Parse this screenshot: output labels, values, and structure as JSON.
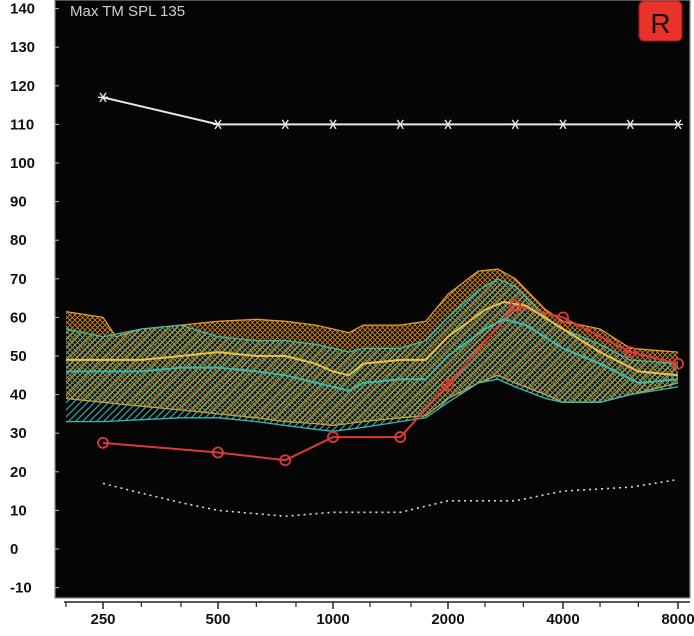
{
  "header": {
    "title": "Max TM SPL 135"
  },
  "ear_badge": {
    "label": "R",
    "color": "#e8322a"
  },
  "colors": {
    "background": "#050505",
    "grid": "#4a4a4a",
    "orange": "#e89a2a",
    "teal": "#38b9b0",
    "red": "#e0383a",
    "white": "#e8e8e8",
    "badge": "#e8322a"
  },
  "chart_data": {
    "type": "line",
    "title": "Max TM SPL 135",
    "xlabel": "",
    "ylabel": "",
    "x_scale": "log",
    "ylim": [
      -12,
      140
    ],
    "y_ticks": [
      -10,
      0,
      10,
      20,
      30,
      40,
      50,
      60,
      70,
      80,
      90,
      100,
      110,
      120,
      130,
      140
    ],
    "y_tick_labels": [
      "-10",
      "0",
      "10",
      "20",
      "30",
      "40",
      "50",
      "60",
      "70",
      "80",
      "90",
      "100",
      "110",
      "120",
      "130",
      "140"
    ],
    "x_tick_values": [
      250,
      500,
      1000,
      2000,
      4000,
      8000
    ],
    "x_tick_labels": [
      "250",
      "500",
      "1000",
      "2000",
      "4000",
      "8000"
    ],
    "x_minor_ticks": [
      200,
      315,
      400,
      630,
      800,
      1250,
      1600,
      2500,
      3150,
      5000,
      6300
    ],
    "grid": false,
    "series": [
      {
        "marker": "star",
        "color": "#e8e8e8",
        "style": "solid",
        "points": [
          [
            250,
            117
          ],
          [
            500,
            110
          ],
          [
            750,
            110
          ],
          [
            1000,
            110
          ],
          [
            1500,
            110
          ],
          [
            2000,
            110
          ],
          [
            3000,
            110
          ],
          [
            4000,
            110
          ],
          [
            6000,
            110
          ],
          [
            8000,
            110
          ]
        ]
      },
      {
        "marker": "circle",
        "color": "#e0383a",
        "style": "solid",
        "points": [
          [
            250,
            27.5
          ],
          [
            500,
            25
          ],
          [
            750,
            23
          ],
          [
            1000,
            29
          ],
          [
            1500,
            29
          ],
          [
            2000,
            42.5
          ],
          [
            3000,
            63
          ],
          [
            4000,
            60
          ],
          [
            6000,
            51
          ],
          [
            8000,
            48
          ]
        ]
      },
      {
        "marker": "none",
        "color": "#dddddd",
        "style": "dotted",
        "points": [
          [
            250,
            17
          ],
          [
            300,
            15
          ],
          [
            400,
            12
          ],
          [
            500,
            10
          ],
          [
            750,
            8.5
          ],
          [
            1000,
            9.5
          ],
          [
            1500,
            9.5
          ],
          [
            2000,
            12.5
          ],
          [
            3000,
            12.5
          ],
          [
            4000,
            15
          ],
          [
            6000,
            16
          ],
          [
            8000,
            18
          ]
        ]
      },
      {
        "marker": "none",
        "color": "#e8c04a",
        "style": "solid",
        "points": [
          [
            200,
            49
          ],
          [
            250,
            49
          ],
          [
            315,
            49
          ],
          [
            400,
            50
          ],
          [
            500,
            51
          ],
          [
            630,
            50
          ],
          [
            750,
            50
          ],
          [
            900,
            48
          ],
          [
            1000,
            46
          ],
          [
            1100,
            45
          ],
          [
            1200,
            48
          ],
          [
            1500,
            49
          ],
          [
            1750,
            49
          ],
          [
            2000,
            55
          ],
          [
            2500,
            62
          ],
          [
            2800,
            64
          ],
          [
            3200,
            63
          ],
          [
            4000,
            57
          ],
          [
            5000,
            51
          ],
          [
            6300,
            46
          ],
          [
            8000,
            45
          ]
        ]
      },
      {
        "marker": "none",
        "color": "#38b9b0",
        "style": "solid",
        "points": [
          [
            200,
            46
          ],
          [
            250,
            46
          ],
          [
            315,
            46
          ],
          [
            400,
            47
          ],
          [
            500,
            47
          ],
          [
            630,
            46
          ],
          [
            750,
            45
          ],
          [
            1000,
            42
          ],
          [
            1100,
            41
          ],
          [
            1200,
            43
          ],
          [
            1500,
            44
          ],
          [
            1750,
            44
          ],
          [
            2000,
            50
          ],
          [
            2500,
            57
          ],
          [
            2800,
            59.5
          ],
          [
            3200,
            58
          ],
          [
            4000,
            52
          ],
          [
            5000,
            48
          ],
          [
            6300,
            43
          ],
          [
            8000,
            44
          ]
        ]
      }
    ],
    "bands": [
      {
        "color": "#e89a2a",
        "pattern": "crosshatch",
        "upper": [
          [
            200,
            61.5
          ],
          [
            250,
            60
          ],
          [
            270,
            55
          ],
          [
            315,
            57
          ],
          [
            400,
            58
          ],
          [
            500,
            59
          ],
          [
            630,
            59.5
          ],
          [
            750,
            59
          ],
          [
            900,
            58
          ],
          [
            1000,
            57
          ],
          [
            1100,
            56
          ],
          [
            1200,
            58
          ],
          [
            1500,
            58
          ],
          [
            1750,
            59
          ],
          [
            2000,
            66
          ],
          [
            2400,
            72
          ],
          [
            2700,
            72.5
          ],
          [
            3000,
            70
          ],
          [
            3600,
            62
          ],
          [
            4000,
            59
          ],
          [
            5000,
            57
          ],
          [
            6000,
            52
          ],
          [
            8000,
            51
          ]
        ],
        "lower": [
          [
            200,
            39
          ],
          [
            250,
            38
          ],
          [
            315,
            37
          ],
          [
            400,
            36
          ],
          [
            500,
            35
          ],
          [
            630,
            34
          ],
          [
            750,
            33
          ],
          [
            900,
            32.5
          ],
          [
            1000,
            32
          ],
          [
            1200,
            33
          ],
          [
            1500,
            34
          ],
          [
            1750,
            34.5
          ],
          [
            2000,
            39
          ],
          [
            2400,
            43
          ],
          [
            2700,
            45
          ],
          [
            3000,
            43
          ],
          [
            3600,
            40
          ],
          [
            4000,
            38
          ],
          [
            5000,
            38
          ],
          [
            6000,
            40
          ],
          [
            8000,
            43
          ]
        ]
      },
      {
        "color": "#38b9b0",
        "pattern": "diagonal",
        "upper": [
          [
            200,
            57
          ],
          [
            250,
            55
          ],
          [
            315,
            57
          ],
          [
            400,
            58
          ],
          [
            500,
            55
          ],
          [
            630,
            54
          ],
          [
            750,
            54
          ],
          [
            900,
            53
          ],
          [
            1000,
            52
          ],
          [
            1100,
            51
          ],
          [
            1200,
            52
          ],
          [
            1500,
            52
          ],
          [
            1750,
            54
          ],
          [
            2000,
            60
          ],
          [
            2400,
            67
          ],
          [
            2700,
            70
          ],
          [
            3000,
            68
          ],
          [
            3600,
            60
          ],
          [
            4000,
            57
          ],
          [
            5000,
            53
          ],
          [
            6000,
            49
          ],
          [
            8000,
            48
          ]
        ],
        "lower": [
          [
            200,
            33
          ],
          [
            250,
            33
          ],
          [
            315,
            33.5
          ],
          [
            400,
            34
          ],
          [
            500,
            34
          ],
          [
            630,
            33
          ],
          [
            750,
            32
          ],
          [
            900,
            31
          ],
          [
            1000,
            30.5
          ],
          [
            1200,
            31.5
          ],
          [
            1500,
            33
          ],
          [
            1750,
            34
          ],
          [
            2000,
            38
          ],
          [
            2400,
            43
          ],
          [
            2700,
            44
          ],
          [
            3000,
            42
          ],
          [
            3600,
            39
          ],
          [
            4000,
            38
          ],
          [
            5000,
            38
          ],
          [
            6000,
            40
          ],
          [
            8000,
            42
          ]
        ]
      }
    ]
  }
}
